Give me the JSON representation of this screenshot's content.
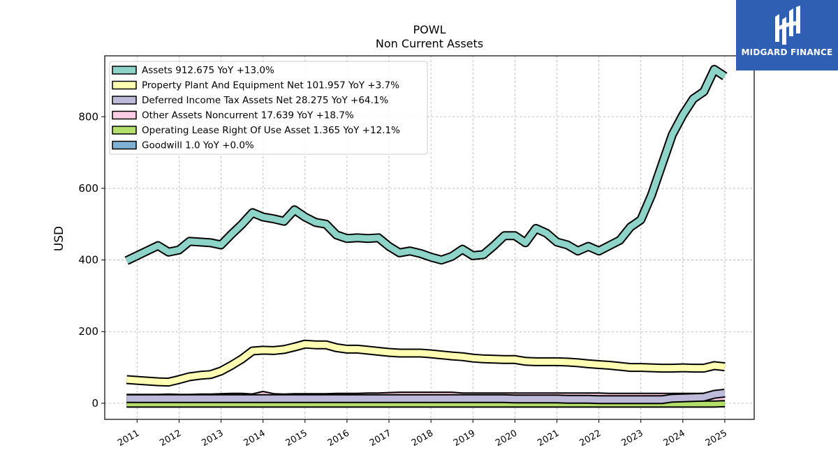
{
  "logo": {
    "text": "MIDGARD FINANCE",
    "background": "#2f5fb3"
  },
  "chart_data": {
    "type": "area",
    "title": "POWL",
    "subtitle": "Non Current  Assets",
    "ylabel": "USD",
    "xlabel": "",
    "ylim": [
      -45,
      970
    ],
    "xlim": [
      2010.23,
      2025.7
    ],
    "yticks": [
      0,
      200,
      400,
      600,
      800
    ],
    "xticks": [
      2011,
      2012,
      2013,
      2014,
      2015,
      2016,
      2017,
      2018,
      2019,
      2020,
      2021,
      2022,
      2023,
      2024,
      2025
    ],
    "grid": true,
    "legend_position": "top-left",
    "x": [
      2010.75,
      2011.0,
      2011.25,
      2011.5,
      2011.75,
      2012.0,
      2012.25,
      2012.5,
      2012.75,
      2013.0,
      2013.25,
      2013.5,
      2013.75,
      2014.0,
      2014.25,
      2014.5,
      2014.75,
      2015.0,
      2015.25,
      2015.5,
      2015.75,
      2016.0,
      2016.25,
      2016.5,
      2016.75,
      2017.0,
      2017.25,
      2017.5,
      2017.75,
      2018.0,
      2018.25,
      2018.5,
      2018.75,
      2019.0,
      2019.25,
      2019.5,
      2019.75,
      2020.0,
      2020.25,
      2020.5,
      2020.75,
      2021.0,
      2021.25,
      2021.5,
      2021.75,
      2022.0,
      2022.25,
      2022.5,
      2022.75,
      2023.0,
      2023.25,
      2023.5,
      2023.75,
      2024.0,
      2024.25,
      2024.5,
      2024.75,
      2025.0
    ],
    "series": [
      {
        "name": "Assets",
        "legend": "Assets  912.675 YoY +13.0%",
        "color": "#8dd3c7",
        "values": [
          398,
          412,
          426,
          440,
          422,
          428,
          452,
          450,
          448,
          442,
          472,
          500,
          532,
          520,
          515,
          508,
          540,
          520,
          505,
          500,
          470,
          460,
          462,
          460,
          462,
          438,
          420,
          425,
          418,
          408,
          400,
          410,
          430,
          412,
          415,
          440,
          468,
          468,
          448,
          488,
          475,
          450,
          442,
          425,
          438,
          425,
          440,
          455,
          492,
          512,
          580,
          665,
          750,
          805,
          850,
          870,
          932,
          912.675
        ]
      },
      {
        "name": "Property Plant And Equipment Net",
        "legend": "Property Plant And Equipment Net  101.957 YoY +3.7%",
        "color": "#ffffb3",
        "values": [
          66,
          64,
          62,
          60,
          59,
          66,
          74,
          78,
          80,
          90,
          106,
          124,
          146,
          148,
          147,
          150,
          157,
          165,
          163,
          163,
          155,
          151,
          151,
          148,
          145,
          142,
          140,
          140,
          140,
          138,
          135,
          132,
          130,
          126,
          124,
          123,
          122,
          122,
          117,
          116,
          116,
          116,
          115,
          113,
          110,
          108,
          106,
          103,
          100,
          100,
          99,
          98,
          98,
          99,
          98,
          98,
          105,
          101.957
        ]
      },
      {
        "name": "Deferred Income Tax Assets Net",
        "legend": "Deferred Income Tax Assets Net  28.275 YoY +64.1%",
        "color": "#bebada",
        "values": [
          13,
          13,
          13,
          13,
          13,
          13,
          13,
          13,
          13,
          13,
          13,
          13,
          13,
          13,
          13,
          13,
          13,
          13,
          13,
          13,
          13,
          13,
          13,
          13,
          13,
          13,
          13,
          13,
          13,
          13,
          13,
          13,
          13,
          13,
          13,
          13,
          13,
          12,
          12,
          12,
          12,
          12,
          11,
          11,
          11,
          10,
          10,
          10,
          10,
          10,
          10,
          10,
          14,
          15,
          16,
          17,
          25,
          28.275
        ]
      },
      {
        "name": "Other Assets Noncurrent",
        "legend": "Other Assets Noncurrent  17.639 YoY +18.7%",
        "color": "#fccde5",
        "values": [
          14,
          14,
          14,
          14,
          15,
          14,
          14,
          15,
          15,
          16,
          17,
          17,
          15,
          22,
          16,
          15,
          16,
          16,
          16,
          16,
          17,
          17,
          17,
          18,
          18,
          19,
          20,
          20,
          20,
          20,
          20,
          20,
          18,
          18,
          18,
          18,
          18,
          18,
          18,
          18,
          18,
          18,
          18,
          18,
          18,
          18,
          17,
          17,
          17,
          17,
          17,
          17,
          17,
          17,
          17,
          17,
          17,
          17.639
        ]
      },
      {
        "name": "Operating Lease Right Of Use Asset",
        "legend": "Operating Lease Right Of Use Asset  1.365 YoY +12.1%",
        "color": "#b3de69",
        "values": [
          0,
          0,
          0,
          0,
          0,
          0,
          0,
          0,
          0,
          0,
          0,
          0,
          0,
          0,
          0,
          0,
          0,
          0,
          0,
          0,
          0,
          0,
          0,
          0,
          0,
          0,
          0,
          0,
          0,
          0,
          0,
          0,
          0,
          0,
          0,
          0,
          0,
          0,
          0,
          0,
          0,
          0,
          0,
          0,
          0,
          0,
          0,
          0,
          0,
          0,
          0,
          0,
          0,
          0,
          0,
          0,
          0,
          1.365
        ]
      },
      {
        "name": "Goodwill",
        "legend": "Goodwill  1.0 YoY +0.0%",
        "color": "#80b1d3",
        "values": [
          1,
          1,
          1,
          1,
          1,
          1,
          1,
          1,
          1,
          1,
          1,
          1,
          1,
          1,
          1,
          1,
          1,
          1,
          1,
          1,
          1,
          1,
          1,
          1,
          1,
          1,
          1,
          1,
          1,
          1,
          1,
          1,
          1,
          1,
          1,
          1,
          1,
          1,
          1,
          1,
          1,
          1,
          1,
          1,
          1,
          1,
          1,
          1,
          1,
          1,
          1,
          1,
          1,
          1,
          1,
          1,
          1,
          1.0
        ]
      }
    ]
  }
}
